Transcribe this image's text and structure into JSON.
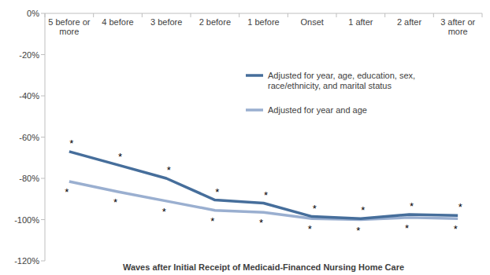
{
  "chart_data": {
    "type": "line",
    "xlabel": "Waves after Initial Receipt of Medicaid-Financed Nursing Home Care",
    "categories": [
      "5 before or more",
      "4 before",
      "3 before",
      "2 before",
      "1 before",
      "Onset",
      "1 after",
      "2 after",
      "3 after or more"
    ],
    "series": [
      {
        "name": "Adjusted for year, age, education, sex, race/ethnicity, and marital status",
        "color": "#466e9b",
        "values": [
          -67,
          -73.5,
          -80,
          -90.5,
          -92,
          -98.5,
          -99.5,
          -97.5,
          -98
        ],
        "annotations": [
          "*",
          "*",
          "*",
          "*",
          "*",
          "*",
          "*",
          "*",
          "*"
        ]
      },
      {
        "name": "Adjusted for year and age",
        "color": "#9aafd0",
        "values": [
          -81.5,
          -86.5,
          -91,
          -95.5,
          -96.5,
          -99.5,
          -100,
          -99,
          -99.5
        ],
        "annotations": [
          "*",
          "*",
          "*",
          "*",
          "*",
          "*",
          "*",
          "*",
          "*"
        ]
      }
    ],
    "ylim": [
      -120,
      0
    ],
    "yticks": [
      {
        "value": 0,
        "label": "0%"
      },
      {
        "value": -20,
        "label": "-20%"
      },
      {
        "value": -40,
        "label": "-40%"
      },
      {
        "value": -60,
        "label": "-60%"
      },
      {
        "value": -80,
        "label": "-80%"
      },
      {
        "value": -100,
        "label": "-100%"
      },
      {
        "value": -120,
        "label": "-120%"
      }
    ],
    "grid": false,
    "legend": "upper right"
  }
}
